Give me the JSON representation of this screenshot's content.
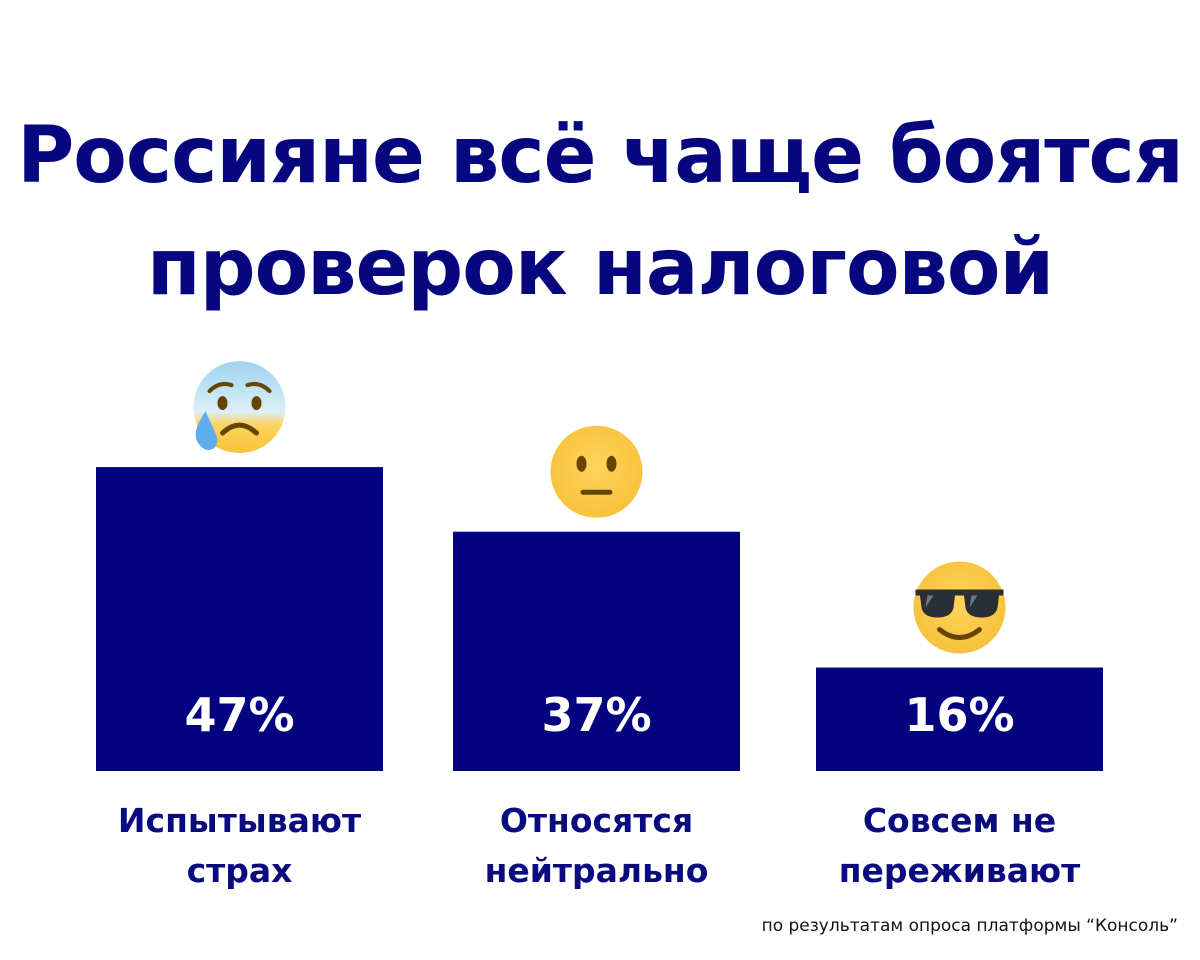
{
  "title_lines": [
    "Россияне всё чаще боятся",
    "проверок налоговой"
  ],
  "source_note": "по результатам опроса платформы “Консоль”",
  "chart_data": {
    "type": "bar",
    "title": "Россияне всё чаще боятся проверок налоговой",
    "categories": [
      "Испытывают страх",
      "Относятся нейтрально",
      "Совсем не переживают"
    ],
    "category_lines": [
      [
        "Испытывают",
        "страх"
      ],
      [
        "Относятся",
        "нейтрально"
      ],
      [
        "Совсем не",
        "переживают"
      ]
    ],
    "values": [
      47,
      37,
      16
    ],
    "value_labels": [
      "47%",
      "37%",
      "16%"
    ],
    "icons": [
      "anxious-face-with-sweat-icon",
      "neutral-face-icon",
      "smiling-face-with-sunglasses-icon"
    ],
    "bar_color": "#03037f",
    "ylim": [
      0,
      60
    ],
    "grid": false,
    "legend": "none",
    "xlabel": "",
    "ylabel": ""
  }
}
